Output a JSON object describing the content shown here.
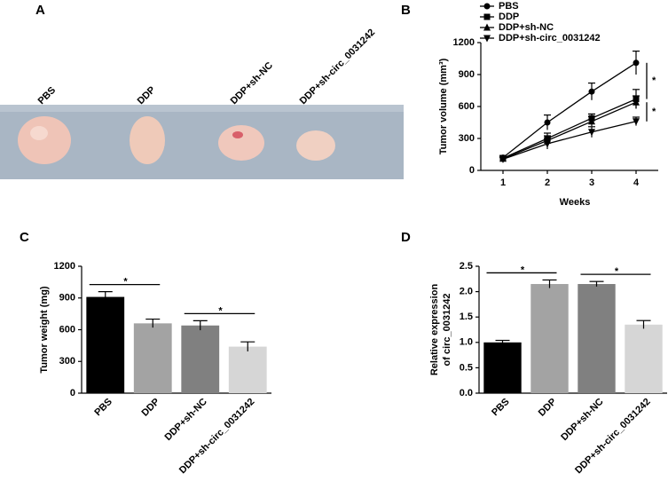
{
  "photo": {
    "panel": "A",
    "captions": [
      "PBS",
      "DDP",
      "DDP+sh-NC",
      "DDP+sh-circ_0031242"
    ]
  },
  "chart_data": [
    {
      "type": "line",
      "panel": "B",
      "x_label": "Weeks",
      "y_label": "Tumor volume (mm³)",
      "x": [
        1,
        2,
        3,
        4
      ],
      "xlim": [
        0.5,
        4.5
      ],
      "xticks": [
        1,
        2,
        3,
        4
      ],
      "ylim": [
        0,
        1200
      ],
      "yticks": [
        0,
        300,
        600,
        900,
        1200
      ],
      "series": [
        {
          "name": "PBS",
          "color": "#000000",
          "marker": "circle",
          "values": [
            120,
            450,
            740,
            1010
          ],
          "errors": [
            20,
            70,
            80,
            110
          ]
        },
        {
          "name": "DDP",
          "color": "#000000",
          "marker": "square",
          "values": [
            115,
            300,
            490,
            670
          ],
          "errors": [
            15,
            50,
            40,
            90
          ]
        },
        {
          "name": "DDP+sh-NC",
          "color": "#000000",
          "marker": "triangle-up",
          "values": [
            110,
            280,
            460,
            640
          ],
          "errors": [
            15,
            45,
            45,
            60
          ]
        },
        {
          "name": "DDP+sh-circ_0031242",
          "color": "#000000",
          "marker": "triangle-down",
          "values": [
            105,
            250,
            360,
            460
          ],
          "errors": [
            15,
            50,
            50,
            40
          ]
        }
      ],
      "annotations": [
        "*",
        "*"
      ]
    },
    {
      "type": "bar",
      "panel": "C",
      "y_label": "Tumor weight (mg)",
      "categories": [
        "PBS",
        "DDP",
        "DDP+sh-NC",
        "DDP+sh-circ_0031242"
      ],
      "values": [
        910,
        660,
        640,
        440
      ],
      "errors": [
        50,
        40,
        45,
        45
      ],
      "colors": [
        "#000000",
        "#a3a3a3",
        "#808080",
        "#d6d6d6"
      ],
      "ylim": [
        0,
        1200
      ],
      "yticks": [
        0,
        300,
        600,
        900,
        1200
      ],
      "annotations": [
        "*",
        "*"
      ]
    },
    {
      "type": "bar",
      "panel": "D",
      "y_label": [
        "Relative expression",
        "of circ_0031242"
      ],
      "categories": [
        "PBS",
        "DDP",
        "DDP+sh-NC",
        "DDP+sh-circ_0031242"
      ],
      "values": [
        1.0,
        2.15,
        2.15,
        1.35
      ],
      "errors": [
        0.04,
        0.08,
        0.05,
        0.08
      ],
      "colors": [
        "#000000",
        "#a3a3a3",
        "#808080",
        "#d6d6d6"
      ],
      "ylim": [
        0,
        2.5
      ],
      "yticks": [
        {
          "value": 0,
          "label": "0.0"
        },
        0.5,
        {
          "value": 1,
          "label": "1.0"
        },
        1.5,
        {
          "value": 2,
          "label": "2.0"
        },
        2.5
      ],
      "annotations": [
        "*",
        "*"
      ]
    }
  ]
}
